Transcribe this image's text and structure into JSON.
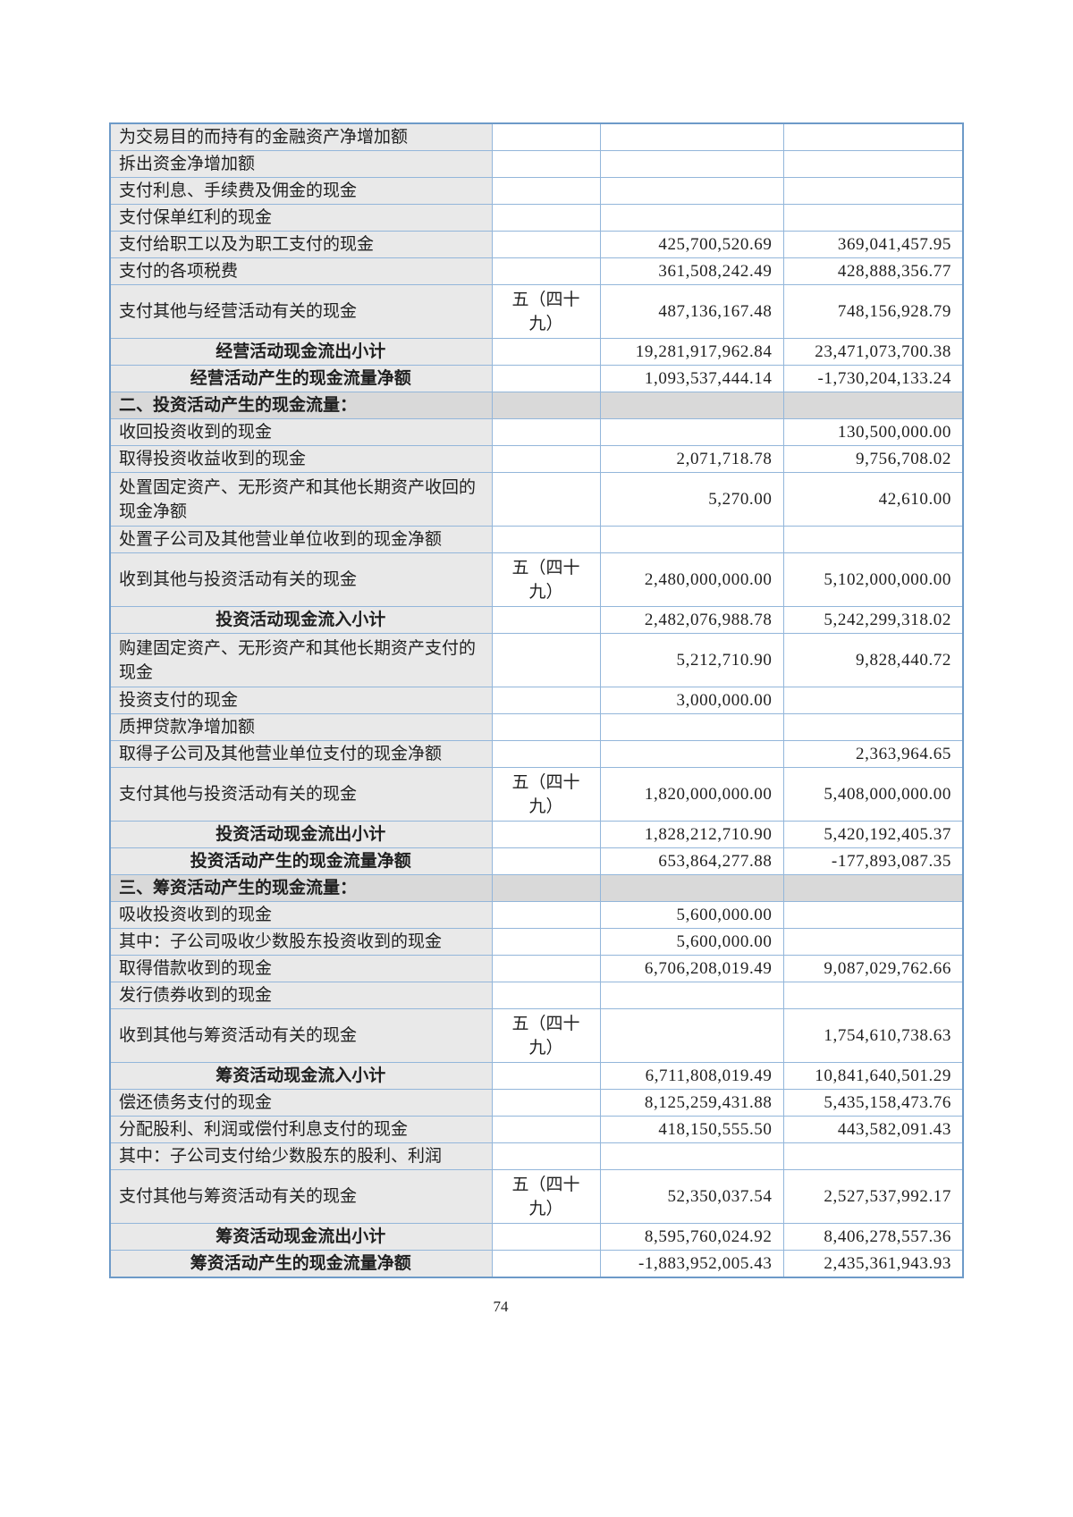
{
  "page": {
    "number": "74"
  },
  "table": {
    "rows": [
      {
        "style": "item",
        "label": "为交易目的而持有的金融资产净增加额",
        "note": "",
        "current": "",
        "prior": ""
      },
      {
        "style": "item",
        "label": "拆出资金净增加额",
        "note": "",
        "current": "",
        "prior": ""
      },
      {
        "style": "item",
        "label": "支付利息、手续费及佣金的现金",
        "note": "",
        "current": "",
        "prior": ""
      },
      {
        "style": "item",
        "label": "支付保单红利的现金",
        "note": "",
        "current": "",
        "prior": ""
      },
      {
        "style": "item",
        "label": "支付给职工以及为职工支付的现金",
        "note": "",
        "current": "425,700,520.69",
        "prior": "369,041,457.95"
      },
      {
        "style": "item",
        "label": "支付的各项税费",
        "note": "",
        "current": "361,508,242.49",
        "prior": "428,888,356.77"
      },
      {
        "style": "item",
        "label": "支付其他与经营活动有关的现金",
        "note": "五（四十九）",
        "current": "487,136,167.48",
        "prior": "748,156,928.79"
      },
      {
        "style": "subtotal",
        "label": "经营活动现金流出小计",
        "note": "",
        "current": "19,281,917,962.84",
        "prior": "23,471,073,700.38"
      },
      {
        "style": "subtotal",
        "label": "经营活动产生的现金流量净额",
        "note": "",
        "current": "1,093,537,444.14",
        "prior": "-1,730,204,133.24"
      },
      {
        "style": "section",
        "label": "二、投资活动产生的现金流量：",
        "note": "",
        "current": "",
        "prior": ""
      },
      {
        "style": "item",
        "label": "收回投资收到的现金",
        "note": "",
        "current": "",
        "prior": "130,500,000.00"
      },
      {
        "style": "item",
        "label": "取得投资收益收到的现金",
        "note": "",
        "current": "2,071,718.78",
        "prior": "9,756,708.02"
      },
      {
        "style": "item",
        "label": "处置固定资产、无形资产和其他长期资产收回的现金净额",
        "note": "",
        "current": "5,270.00",
        "prior": "42,610.00"
      },
      {
        "style": "item",
        "label": "处置子公司及其他营业单位收到的现金净额",
        "note": "",
        "current": "",
        "prior": ""
      },
      {
        "style": "item",
        "label": "收到其他与投资活动有关的现金",
        "note": "五（四十九）",
        "current": "2,480,000,000.00",
        "prior": "5,102,000,000.00"
      },
      {
        "style": "subtotal",
        "label": "投资活动现金流入小计",
        "note": "",
        "current": "2,482,076,988.78",
        "prior": "5,242,299,318.02"
      },
      {
        "style": "item",
        "label": "购建固定资产、无形资产和其他长期资产支付的现金",
        "note": "",
        "current": "5,212,710.90",
        "prior": "9,828,440.72"
      },
      {
        "style": "item",
        "label": "投资支付的现金",
        "note": "",
        "current": "3,000,000.00",
        "prior": ""
      },
      {
        "style": "item",
        "label": "质押贷款净增加额",
        "note": "",
        "current": "",
        "prior": ""
      },
      {
        "style": "item",
        "label": "取得子公司及其他营业单位支付的现金净额",
        "note": "",
        "current": "",
        "prior": "2,363,964.65"
      },
      {
        "style": "item",
        "label": "支付其他与投资活动有关的现金",
        "note": "五（四十九）",
        "current": "1,820,000,000.00",
        "prior": "5,408,000,000.00"
      },
      {
        "style": "subtotal",
        "label": "投资活动现金流出小计",
        "note": "",
        "current": "1,828,212,710.90",
        "prior": "5,420,192,405.37"
      },
      {
        "style": "subtotal",
        "label": "投资活动产生的现金流量净额",
        "note": "",
        "current": "653,864,277.88",
        "prior": "-177,893,087.35"
      },
      {
        "style": "section",
        "label": "三、筹资活动产生的现金流量：",
        "note": "",
        "current": "",
        "prior": ""
      },
      {
        "style": "item",
        "label": "吸收投资收到的现金",
        "note": "",
        "current": "5,600,000.00",
        "prior": ""
      },
      {
        "style": "item",
        "label": "其中：子公司吸收少数股东投资收到的现金",
        "note": "",
        "current": "5,600,000.00",
        "prior": ""
      },
      {
        "style": "item",
        "label": "取得借款收到的现金",
        "note": "",
        "current": "6,706,208,019.49",
        "prior": "9,087,029,762.66"
      },
      {
        "style": "item",
        "label": "发行债券收到的现金",
        "note": "",
        "current": "",
        "prior": ""
      },
      {
        "style": "item",
        "label": "收到其他与筹资活动有关的现金",
        "note": "五（四十九）",
        "current": "",
        "prior": "1,754,610,738.63"
      },
      {
        "style": "subtotal",
        "label": "筹资活动现金流入小计",
        "note": "",
        "current": "6,711,808,019.49",
        "prior": "10,841,640,501.29"
      },
      {
        "style": "item",
        "label": "偿还债务支付的现金",
        "note": "",
        "current": "8,125,259,431.88",
        "prior": "5,435,158,473.76"
      },
      {
        "style": "item",
        "label": "分配股利、利润或偿付利息支付的现金",
        "note": "",
        "current": "418,150,555.50",
        "prior": "443,582,091.43"
      },
      {
        "style": "item",
        "label": "其中：子公司支付给少数股东的股利、利润",
        "note": "",
        "current": "",
        "prior": ""
      },
      {
        "style": "item",
        "label": "支付其他与筹资活动有关的现金",
        "note": "五（四十九）",
        "current": "52,350,037.54",
        "prior": "2,527,537,992.17"
      },
      {
        "style": "subtotal",
        "label": "筹资活动现金流出小计",
        "note": "",
        "current": "8,595,760,024.92",
        "prior": "8,406,278,557.36"
      },
      {
        "style": "subtotal",
        "label": "筹资活动产生的现金流量净额",
        "note": "",
        "current": "-1,883,952,005.43",
        "prior": "2,435,361,943.93"
      }
    ]
  }
}
